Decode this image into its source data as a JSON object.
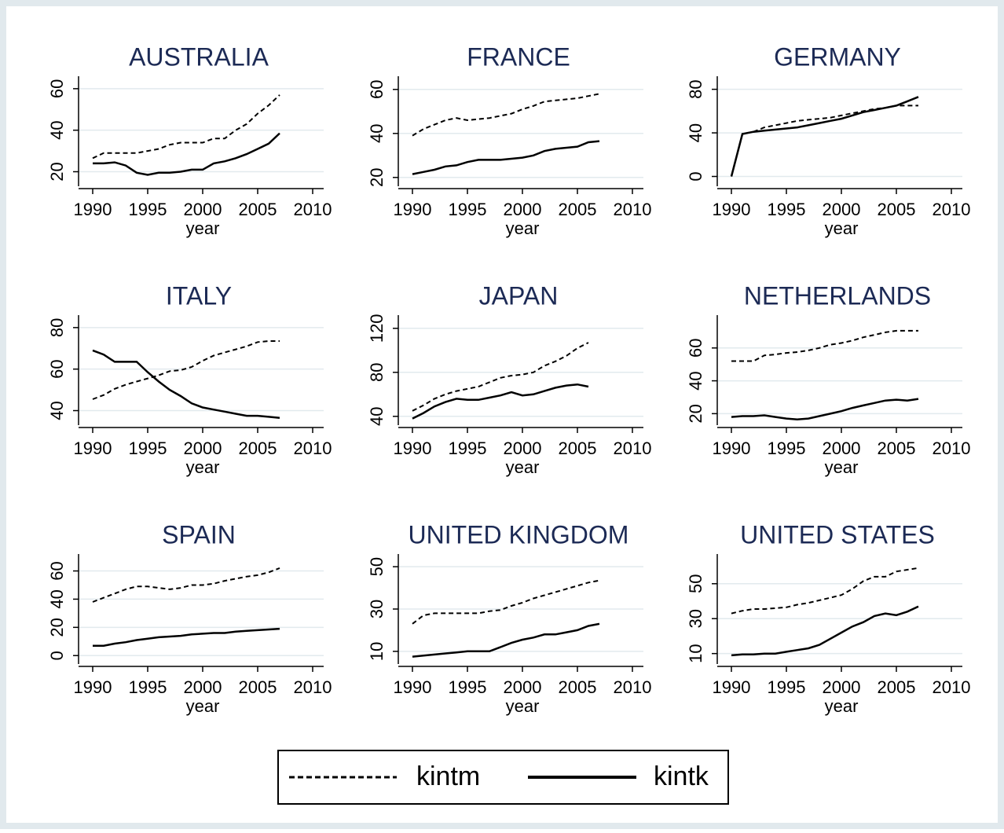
{
  "chart_data": [
    {
      "type": "line",
      "title": "AUSTRALIA",
      "xlabel": "year",
      "xlim": [
        1990,
        2010
      ],
      "xticks": [
        1990,
        1995,
        2000,
        2005,
        2010
      ],
      "ylim": [
        13,
        66
      ],
      "yticks": [
        20,
        40,
        60
      ],
      "grid": true,
      "x": [
        1990,
        1991,
        1992,
        1993,
        1994,
        1995,
        1996,
        1997,
        1998,
        1999,
        2000,
        2001,
        2002,
        2003,
        2004,
        2005,
        2006,
        2007
      ],
      "series": [
        {
          "name": "kintm",
          "style": "dashed",
          "color": "#000000",
          "values": [
            26.5,
            29,
            29,
            29,
            29,
            30,
            31,
            33,
            34,
            34,
            34,
            36,
            36,
            40,
            43,
            48,
            52,
            57
          ]
        },
        {
          "name": "kintk",
          "style": "solid",
          "color": "#000000",
          "values": [
            24,
            24,
            24.5,
            23,
            19.5,
            18.5,
            19.5,
            19.5,
            20,
            21,
            21,
            24,
            25,
            26.5,
            28.5,
            31,
            33.5,
            38.5
          ]
        }
      ]
    },
    {
      "type": "line",
      "title": "FRANCE",
      "xlabel": "year",
      "xlim": [
        1990,
        2010
      ],
      "xticks": [
        1990,
        1995,
        2000,
        2005,
        2010
      ],
      "ylim": [
        16,
        66
      ],
      "yticks": [
        20,
        40,
        60
      ],
      "grid": true,
      "x": [
        1990,
        1991,
        1992,
        1993,
        1994,
        1995,
        1996,
        1997,
        1998,
        1999,
        2000,
        2001,
        2002,
        2003,
        2004,
        2005,
        2006,
        2007
      ],
      "series": [
        {
          "name": "kintm",
          "style": "dashed",
          "color": "#000000",
          "values": [
            39,
            42,
            44,
            46,
            47,
            46,
            46.5,
            47,
            48,
            49,
            51,
            52.5,
            54.5,
            55,
            55.5,
            56,
            57,
            58
          ]
        },
        {
          "name": "kintk",
          "style": "solid",
          "color": "#000000",
          "values": [
            21.5,
            22.5,
            23.5,
            25,
            25.5,
            27,
            28,
            28,
            28,
            28.5,
            29,
            30,
            32,
            33,
            33.5,
            34,
            36,
            36.5
          ]
        }
      ]
    },
    {
      "type": "line",
      "title": "GERMANY",
      "xlabel": "year",
      "xlim": [
        1990,
        2010
      ],
      "xticks": [
        1990,
        1995,
        2000,
        2005,
        2010
      ],
      "ylim": [
        -9,
        92
      ],
      "yticks": [
        0,
        40,
        80
      ],
      "grid": true,
      "x": [
        1990,
        1991,
        1992,
        1993,
        1994,
        1995,
        1996,
        1997,
        1998,
        1999,
        2000,
        2001,
        2002,
        2003,
        2004,
        2005,
        2006,
        2007
      ],
      "series": [
        {
          "name": "kintm",
          "style": "dashed",
          "color": "#000000",
          "values": [
            0,
            39,
            41,
            45,
            47,
            49,
            51,
            52,
            53,
            54,
            56,
            58,
            60,
            62,
            63,
            65,
            65,
            65
          ]
        },
        {
          "name": "kintk",
          "style": "solid",
          "color": "#000000",
          "values": [
            0,
            39,
            41,
            42,
            43,
            44,
            45,
            47,
            49,
            51,
            53,
            56,
            59,
            61,
            63,
            65,
            69,
            73
          ]
        }
      ]
    },
    {
      "type": "line",
      "title": "ITALY",
      "xlabel": "year",
      "xlim": [
        1990,
        2010
      ],
      "xticks": [
        1990,
        1995,
        2000,
        2005,
        2010
      ],
      "ylim": [
        33,
        86
      ],
      "yticks": [
        40,
        60,
        80
      ],
      "grid": true,
      "x": [
        1990,
        1991,
        1992,
        1993,
        1994,
        1995,
        1996,
        1997,
        1998,
        1999,
        2000,
        2001,
        2002,
        2003,
        2004,
        2005,
        2006,
        2007
      ],
      "series": [
        {
          "name": "kintm",
          "style": "dashed",
          "color": "#000000",
          "values": [
            45.5,
            47.5,
            50.5,
            52.5,
            54,
            55.5,
            57,
            59,
            59.5,
            61,
            64,
            66.5,
            68,
            69.5,
            71,
            73,
            73.5,
            73.5
          ]
        },
        {
          "name": "kintk",
          "style": "solid",
          "color": "#000000",
          "values": [
            69,
            67,
            63.5,
            63.5,
            63.5,
            58.5,
            54,
            50,
            47,
            43.5,
            41.5,
            40.5,
            39.5,
            38.5,
            37.5,
            37.5,
            37,
            36.5
          ]
        }
      ]
    },
    {
      "type": "line",
      "title": "JAPAN",
      "xlabel": "year",
      "xlim": [
        1990,
        2010
      ],
      "xticks": [
        1990,
        1995,
        2000,
        2005,
        2010
      ],
      "ylim": [
        32,
        132
      ],
      "yticks": [
        40,
        80,
        120
      ],
      "grid": true,
      "x": [
        1990,
        1991,
        1992,
        1993,
        1994,
        1995,
        1996,
        1997,
        1998,
        1999,
        2000,
        2001,
        2002,
        2003,
        2004,
        2005,
        2006,
        2007
      ],
      "series": [
        {
          "name": "kintm",
          "style": "dashed",
          "color": "#000000",
          "values": [
            45,
            50,
            56,
            60,
            63,
            65,
            67,
            71,
            75,
            77,
            78,
            80,
            86,
            90,
            95,
            102,
            107,
            null
          ]
        },
        {
          "name": "kintk",
          "style": "solid",
          "color": "#000000",
          "values": [
            38,
            43,
            49,
            53,
            56,
            55,
            55,
            57,
            59,
            62,
            59,
            60,
            63,
            66,
            68,
            69,
            67,
            null
          ]
        }
      ]
    },
    {
      "type": "line",
      "title": "NETHERLANDS",
      "xlabel": "year",
      "xlim": [
        1990,
        2010
      ],
      "xticks": [
        1990,
        1995,
        2000,
        2005,
        2010
      ],
      "ylim": [
        13,
        80
      ],
      "yticks": [
        20,
        40,
        60
      ],
      "grid": true,
      "x": [
        1990,
        1991,
        1992,
        1993,
        1994,
        1995,
        1996,
        1997,
        1998,
        1999,
        2000,
        2001,
        2002,
        2003,
        2004,
        2005,
        2006,
        2007
      ],
      "series": [
        {
          "name": "kintm",
          "style": "dashed",
          "color": "#000000",
          "values": [
            52,
            52,
            52,
            55.5,
            56,
            57,
            57.5,
            58.5,
            60,
            62,
            63,
            64.5,
            66.5,
            68,
            69.5,
            70.5,
            70.5,
            70.5
          ]
        },
        {
          "name": "kintk",
          "style": "solid",
          "color": "#000000",
          "values": [
            18,
            18.5,
            18.5,
            19,
            18,
            17,
            16.5,
            17,
            18.5,
            20,
            21.5,
            23.5,
            25,
            26.5,
            28,
            28.5,
            28,
            29
          ]
        }
      ]
    },
    {
      "type": "line",
      "title": "SPAIN",
      "xlabel": "year",
      "xlim": [
        1990,
        2010
      ],
      "xticks": [
        1990,
        1995,
        2000,
        2005,
        2010
      ],
      "ylim": [
        -6,
        72
      ],
      "yticks": [
        0,
        20,
        40,
        60
      ],
      "grid": true,
      "x": [
        1990,
        1991,
        1992,
        1993,
        1994,
        1995,
        1996,
        1997,
        1998,
        1999,
        2000,
        2001,
        2002,
        2003,
        2004,
        2005,
        2006,
        2007
      ],
      "series": [
        {
          "name": "kintm",
          "style": "dashed",
          "color": "#000000",
          "values": [
            38,
            41,
            44,
            47,
            49,
            49,
            48,
            47,
            48,
            50,
            50,
            51,
            53,
            54.5,
            56,
            57,
            59,
            62
          ]
        },
        {
          "name": "kintk",
          "style": "solid",
          "color": "#000000",
          "values": [
            7,
            7,
            8.5,
            9.5,
            11,
            12,
            13,
            13.5,
            14,
            15,
            15.5,
            16,
            16,
            17,
            17.5,
            18,
            18.5,
            19
          ]
        }
      ]
    },
    {
      "type": "line",
      "title": "UNITED KINGDOM",
      "xlabel": "year",
      "xlim": [
        1990,
        2010
      ],
      "xticks": [
        1990,
        1995,
        2000,
        2005,
        2010
      ],
      "ylim": [
        4,
        56
      ],
      "yticks": [
        10,
        30,
        50
      ],
      "grid": true,
      "x": [
        1990,
        1991,
        1992,
        1993,
        1994,
        1995,
        1996,
        1997,
        1998,
        1999,
        2000,
        2001,
        2002,
        2003,
        2004,
        2005,
        2006,
        2007
      ],
      "series": [
        {
          "name": "kintm",
          "style": "dashed",
          "color": "#000000",
          "values": [
            23,
            27,
            28,
            28,
            28,
            28,
            28,
            29,
            29.5,
            31.5,
            33,
            35,
            36.5,
            38,
            39.5,
            41,
            42.5,
            43.5
          ]
        },
        {
          "name": "kintk",
          "style": "solid",
          "color": "#000000",
          "values": [
            7.5,
            8,
            8.5,
            9,
            9.5,
            10,
            10,
            10,
            12,
            14,
            15.5,
            16.5,
            18,
            18,
            19,
            20,
            22,
            23
          ]
        }
      ]
    },
    {
      "type": "line",
      "title": "UNITED STATES",
      "xlabel": "year",
      "xlim": [
        1990,
        2010
      ],
      "xticks": [
        1990,
        1995,
        2000,
        2005,
        2010
      ],
      "ylim": [
        4,
        67
      ],
      "yticks": [
        10,
        30,
        50
      ],
      "grid": true,
      "x": [
        1990,
        1991,
        1992,
        1993,
        1994,
        1995,
        1996,
        1997,
        1998,
        1999,
        2000,
        2001,
        2002,
        2003,
        2004,
        2005,
        2006,
        2007
      ],
      "series": [
        {
          "name": "kintm",
          "style": "dashed",
          "color": "#000000",
          "values": [
            33,
            34.5,
            35.5,
            35.5,
            36,
            36.5,
            38,
            39,
            40.5,
            42,
            43.5,
            47,
            51.5,
            54,
            54,
            57,
            58,
            59
          ]
        },
        {
          "name": "kintk",
          "style": "solid",
          "color": "#000000",
          "values": [
            9,
            9.5,
            9.5,
            10,
            10,
            11,
            12,
            13,
            15,
            18.5,
            22,
            25.5,
            28,
            31.5,
            33,
            32,
            34,
            37
          ]
        }
      ]
    }
  ]
}
